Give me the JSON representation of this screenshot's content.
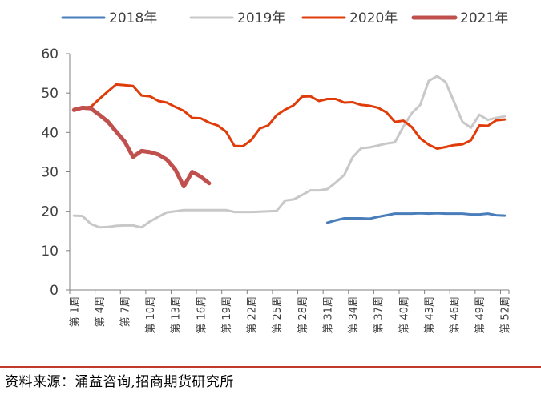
{
  "chart_data": {
    "type": "line",
    "ylim": [
      0,
      60
    ],
    "yticks": [
      0,
      10,
      20,
      30,
      40,
      50,
      60
    ],
    "grid": false,
    "legend_position": "top",
    "x": [
      "第1周",
      "第2周",
      "第3周",
      "第4周",
      "第5周",
      "第6周",
      "第7周",
      "第8周",
      "第9周",
      "第10周",
      "第11周",
      "第12周",
      "第13周",
      "第14周",
      "第15周",
      "第16周",
      "第17周",
      "第18周",
      "第19周",
      "第20周",
      "第21周",
      "第22周",
      "第23周",
      "第24周",
      "第25周",
      "第26周",
      "第27周",
      "第28周",
      "第29周",
      "第30周",
      "第31周",
      "第32周",
      "第33周",
      "第34周",
      "第35周",
      "第36周",
      "第37周",
      "第38周",
      "第39周",
      "第40周",
      "第41周",
      "第42周",
      "第43周",
      "第44周",
      "第45周",
      "第46周",
      "第47周",
      "第48周",
      "第49周",
      "第50周",
      "第51周",
      "第52周"
    ],
    "xticks": [
      "第 1周",
      "第 4周",
      "第 7周",
      "第 10周",
      "第 13周",
      "第 16周",
      "第 19周",
      "第 22周",
      "第 25周",
      "第 28周",
      "第 31周",
      "第 34周",
      "第 37周",
      "第 40周",
      "第 43周",
      "第 46周",
      "第 49周",
      "第 52周"
    ],
    "series": [
      {
        "name": "2018年",
        "color": "#4a7ebb",
        "width": 3,
        "values": [
          null,
          null,
          null,
          null,
          null,
          null,
          null,
          null,
          null,
          null,
          null,
          null,
          null,
          null,
          null,
          null,
          null,
          null,
          null,
          null,
          null,
          null,
          null,
          null,
          null,
          null,
          null,
          null,
          null,
          null,
          17.1,
          17.7,
          18.2,
          18.2,
          18.2,
          18.1,
          18.6,
          19.0,
          19.4,
          19.4,
          19.4,
          19.5,
          19.4,
          19.5,
          19.4,
          19.4,
          19.4,
          19.2,
          19.2,
          19.4,
          19.0,
          18.9
        ]
      },
      {
        "name": "2019年",
        "color": "#c8c8c8",
        "width": 3,
        "values": [
          18.9,
          18.8,
          16.8,
          15.9,
          16.0,
          16.3,
          16.4,
          16.4,
          15.9,
          17.4,
          18.6,
          19.7,
          20.0,
          20.3,
          20.3,
          20.3,
          20.3,
          20.3,
          20.3,
          19.8,
          19.8,
          19.8,
          19.9,
          20.0,
          20.1,
          22.7,
          23.0,
          24.1,
          25.3,
          25.3,
          25.6,
          27.3,
          29.2,
          33.7,
          36.0,
          36.2,
          36.7,
          37.2,
          37.5,
          41.5,
          44.9,
          47.0,
          53.1,
          54.3,
          52.8,
          47.8,
          42.7,
          41.2,
          44.5,
          43.2,
          43.7,
          44.1
        ]
      },
      {
        "name": "2020年",
        "color": "#e03c0a",
        "width": 3,
        "values": [
          46.0,
          46.3,
          46.5,
          48.5,
          50.4,
          52.2,
          52.0,
          51.8,
          49.4,
          49.2,
          48.0,
          47.6,
          46.5,
          45.5,
          43.7,
          43.6,
          42.5,
          41.8,
          40.2,
          36.6,
          36.5,
          38.1,
          41.0,
          41.8,
          44.4,
          45.8,
          46.9,
          49.1,
          49.2,
          48.0,
          48.5,
          48.5,
          47.6,
          47.7,
          47.0,
          46.8,
          46.3,
          45.1,
          42.7,
          43.0,
          41.4,
          38.5,
          36.9,
          35.9,
          36.3,
          36.8,
          37.0,
          38.0,
          41.8,
          41.7,
          43.1,
          43.3
        ]
      },
      {
        "name": "2021年",
        "color": "#c0504d",
        "width": 5,
        "values": [
          45.7,
          46.3,
          46.1,
          44.5,
          42.8,
          40.2,
          37.7,
          33.8,
          35.3,
          35.0,
          34.4,
          33.1,
          30.6,
          26.3,
          30.0,
          28.8,
          27.1,
          null,
          null,
          null,
          null,
          null,
          null,
          null,
          null,
          null,
          null,
          null,
          null,
          null,
          null,
          null,
          null,
          null,
          null,
          null,
          null,
          null,
          null,
          null,
          null,
          null,
          null,
          null,
          null,
          null,
          null,
          null,
          null,
          null,
          null,
          null
        ]
      }
    ]
  },
  "footer": {
    "source": "资料来源：涌益咨询,招商期货研究所",
    "rule_color": "#c0392b"
  }
}
